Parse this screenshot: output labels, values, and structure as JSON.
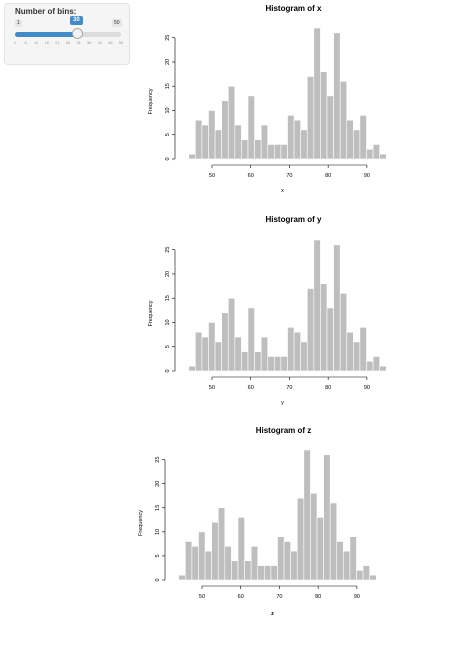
{
  "slider": {
    "label": "Number of bins:",
    "min_label": "1",
    "max_label": "50",
    "value_label": "30",
    "value": 30,
    "min": 1,
    "max": 50,
    "grid_ticks": [
      "1",
      "6",
      "11",
      "16",
      "21",
      "26",
      "31",
      "36",
      "41",
      "46",
      "50"
    ],
    "accent_color": "#428bca"
  },
  "chart_data": [
    {
      "type": "bar",
      "title": "Histogram of x",
      "xlabel": "x",
      "ylabel": "Frequency",
      "bin_start": 44,
      "bin_width": 1.7,
      "values": [
        1,
        8,
        7,
        10,
        6,
        12,
        15,
        7,
        4,
        13,
        4,
        7,
        3,
        3,
        3,
        9,
        8,
        6,
        17,
        27,
        18,
        13,
        26,
        16,
        8,
        6,
        9,
        2,
        3,
        1
      ],
      "xticks": [
        50,
        60,
        70,
        80,
        90
      ],
      "yticks": [
        0,
        5,
        10,
        15,
        20,
        25
      ],
      "ylim": [
        0,
        27
      ],
      "bar_color": "#bebebe"
    },
    {
      "type": "bar",
      "title": "Histogram of y",
      "xlabel": "y",
      "ylabel": "Frequency",
      "bin_start": 44,
      "bin_width": 1.7,
      "values": [
        1,
        8,
        7,
        10,
        6,
        12,
        15,
        7,
        4,
        13,
        4,
        7,
        3,
        3,
        3,
        9,
        8,
        6,
        17,
        27,
        18,
        13,
        26,
        16,
        8,
        6,
        9,
        2,
        3,
        1
      ],
      "xticks": [
        50,
        60,
        70,
        80,
        90
      ],
      "yticks": [
        0,
        5,
        10,
        15,
        20,
        25
      ],
      "ylim": [
        0,
        27
      ],
      "bar_color": "#bebebe"
    },
    {
      "type": "bar",
      "title": "Histogram of z",
      "xlabel": "z",
      "ylabel": "Frequency",
      "bin_start": 44,
      "bin_width": 1.7,
      "values": [
        1,
        8,
        7,
        10,
        6,
        12,
        15,
        7,
        4,
        13,
        4,
        7,
        3,
        3,
        3,
        9,
        8,
        6,
        17,
        27,
        18,
        13,
        26,
        16,
        8,
        6,
        9,
        2,
        3,
        1
      ],
      "xticks": [
        50,
        60,
        70,
        80,
        90
      ],
      "yticks": [
        0,
        5,
        10,
        15,
        20,
        25
      ],
      "ylim": [
        0,
        27
      ],
      "bar_color": "#bebebe"
    }
  ]
}
